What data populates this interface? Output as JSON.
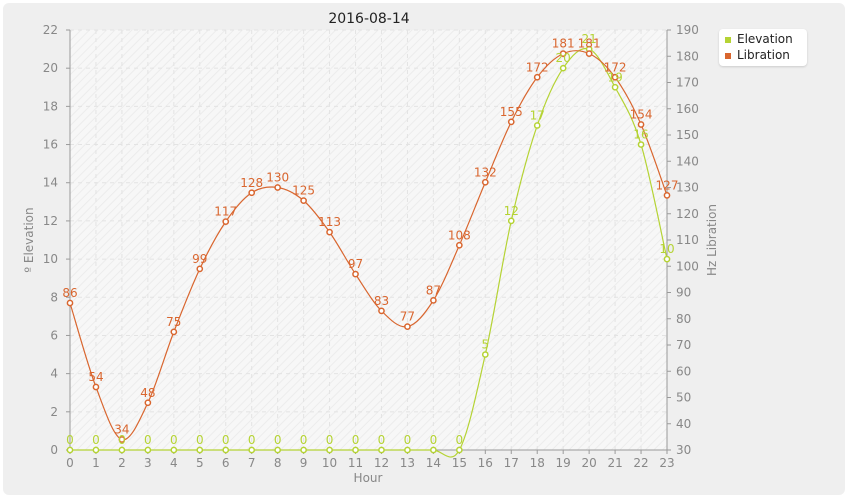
{
  "chart_data": {
    "type": "line",
    "title": "2016-08-14",
    "xlabel": "Hour",
    "ylabel_left": "º Elevation",
    "ylabel_right": "Hz Libration",
    "x": [
      0,
      1,
      2,
      3,
      4,
      5,
      6,
      7,
      8,
      9,
      10,
      11,
      12,
      13,
      14,
      15,
      16,
      17,
      18,
      19,
      20,
      21,
      22,
      23
    ],
    "y_left_range": [
      0,
      22
    ],
    "y_left_ticks": [
      0,
      2,
      4,
      6,
      8,
      10,
      12,
      14,
      16,
      18,
      20,
      22
    ],
    "y_right_range": [
      30,
      190
    ],
    "y_right_ticks": [
      30,
      40,
      50,
      60,
      70,
      80,
      90,
      100,
      110,
      120,
      130,
      140,
      150,
      160,
      170,
      180,
      190
    ],
    "grid": true,
    "legend_position": "top-right",
    "series": [
      {
        "name": "Elevation",
        "axis": "left",
        "color": "#b5d334",
        "values": [
          0,
          0,
          0,
          0,
          0,
          0,
          0,
          0,
          0,
          0,
          0,
          0,
          0,
          0,
          0,
          0,
          5,
          12,
          17,
          20,
          21,
          19,
          16,
          10
        ]
      },
      {
        "name": "Libration",
        "axis": "right",
        "color": "#d9662f",
        "values": [
          86,
          54,
          34,
          48,
          75,
          99,
          117,
          128,
          130,
          125,
          113,
          97,
          83,
          77,
          87,
          108,
          132,
          155,
          172,
          181,
          181,
          172,
          154,
          127
        ]
      }
    ]
  }
}
